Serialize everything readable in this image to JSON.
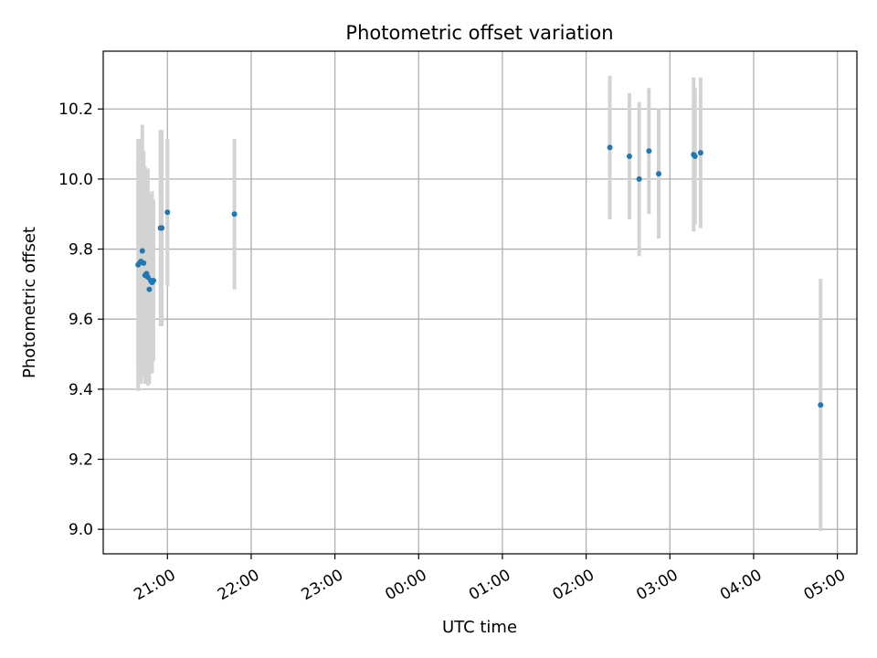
{
  "chart_data": {
    "type": "scatter",
    "title": "Photometric offset variation",
    "xlabel": "UTC time",
    "ylabel": "Photometric offset",
    "x_tick_labels": [
      "21:00",
      "22:00",
      "23:00",
      "00:00",
      "01:00",
      "02:00",
      "03:00",
      "04:00",
      "05:00"
    ],
    "y_tick_labels": [
      "9.0",
      "9.2",
      "9.4",
      "9.6",
      "9.8",
      "10.0",
      "10.2"
    ],
    "y_ticks": [
      9.0,
      9.2,
      9.4,
      9.6,
      9.8,
      10.0,
      10.2
    ],
    "xlim": [
      "20:14",
      "05:14"
    ],
    "ylim": [
      8.93,
      10.365
    ],
    "grid": true,
    "colors": {
      "point": "#1f77b4",
      "errorbar": "#d3d3d3",
      "grid": "#b0b0b0"
    },
    "points": [
      {
        "x": "20:39",
        "y": 9.755,
        "err": 0.36
      },
      {
        "x": "20:40",
        "y": 9.76,
        "err": 0.3
      },
      {
        "x": "20:41",
        "y": 9.765,
        "err": 0.35
      },
      {
        "x": "20:42",
        "y": 9.795,
        "err": 0.36
      },
      {
        "x": "20:43",
        "y": 9.76,
        "err": 0.32
      },
      {
        "x": "20:44",
        "y": 9.725,
        "err": 0.31
      },
      {
        "x": "20:45",
        "y": 9.73,
        "err": 0.27
      },
      {
        "x": "20:46",
        "y": 9.72,
        "err": 0.31
      },
      {
        "x": "20:47",
        "y": 9.685,
        "err": 0.27
      },
      {
        "x": "20:48",
        "y": 9.71,
        "err": 0.25
      },
      {
        "x": "20:49",
        "y": 9.705,
        "err": 0.26
      },
      {
        "x": "20:50",
        "y": 9.71,
        "err": 0.23
      },
      {
        "x": "20:55",
        "y": 9.86,
        "err": 0.28
      },
      {
        "x": "20:56",
        "y": 9.86,
        "err": 0.28
      },
      {
        "x": "21:00",
        "y": 9.905,
        "err": 0.21
      },
      {
        "x": "21:48",
        "y": 9.9,
        "err": 0.215
      },
      {
        "x": "02:17",
        "y": 10.09,
        "err": 0.205
      },
      {
        "x": "02:31",
        "y": 10.065,
        "err": 0.18
      },
      {
        "x": "02:38",
        "y": 10.0,
        "err": 0.22
      },
      {
        "x": "02:45",
        "y": 10.08,
        "err": 0.18
      },
      {
        "x": "02:52",
        "y": 10.015,
        "err": 0.185
      },
      {
        "x": "03:17",
        "y": 10.07,
        "err": 0.22
      },
      {
        "x": "03:18",
        "y": 10.065,
        "err": 0.195
      },
      {
        "x": "03:22",
        "y": 10.075,
        "err": 0.215
      },
      {
        "x": "04:48",
        "y": 9.355,
        "err": 0.36
      }
    ]
  }
}
